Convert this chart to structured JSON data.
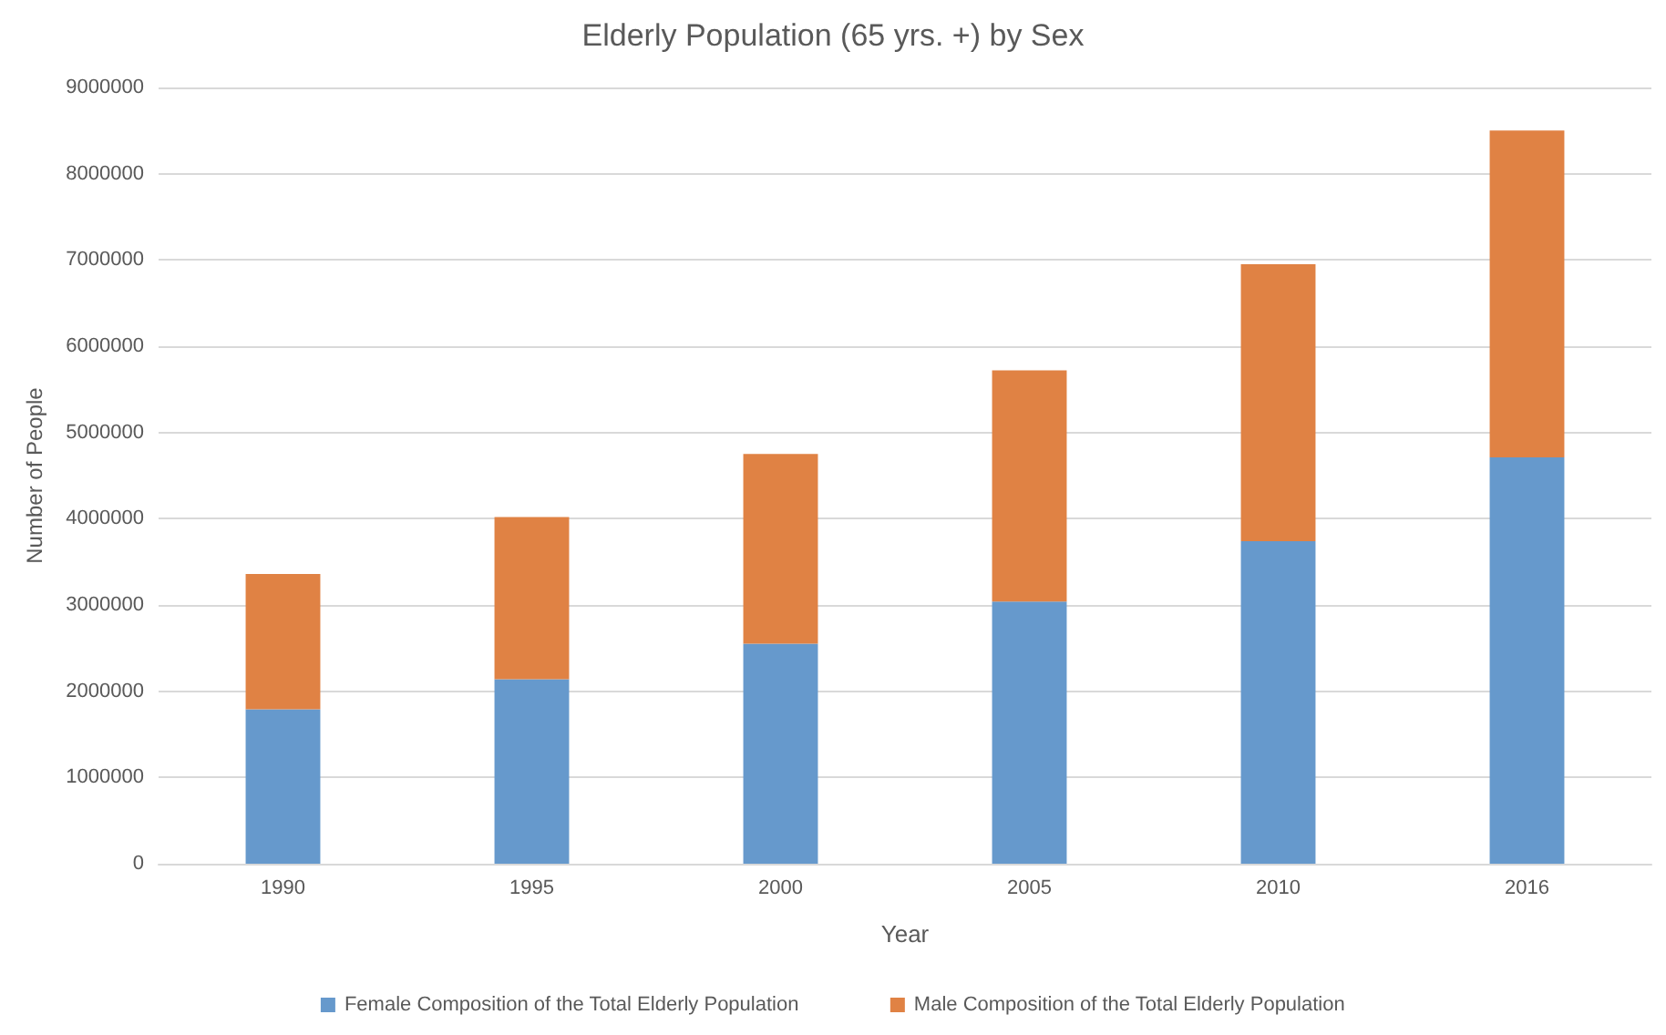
{
  "chart_data": {
    "type": "bar",
    "title": "Elderly Population (65 yrs. +) by Sex",
    "xlabel": "Year",
    "ylabel": "Number of People",
    "categories": [
      "1990",
      "1995",
      "2000",
      "2005",
      "2010",
      "2016"
    ],
    "series": [
      {
        "name": "Female Composition of the Total Elderly Population",
        "color": "#6699cc",
        "values": [
          1790000,
          2140000,
          2550000,
          3040000,
          3740000,
          4710000
        ]
      },
      {
        "name": "Male Composition of the Total Elderly Population",
        "color": "#e08244",
        "values": [
          1570000,
          1880000,
          2200000,
          2680000,
          3210000,
          3790000
        ]
      }
    ],
    "stacked": true,
    "ylim": [
      0,
      9000000
    ],
    "yticks": [
      0,
      1000000,
      2000000,
      3000000,
      4000000,
      5000000,
      6000000,
      7000000,
      8000000,
      9000000
    ],
    "grid": "y",
    "legend": "bottom"
  }
}
